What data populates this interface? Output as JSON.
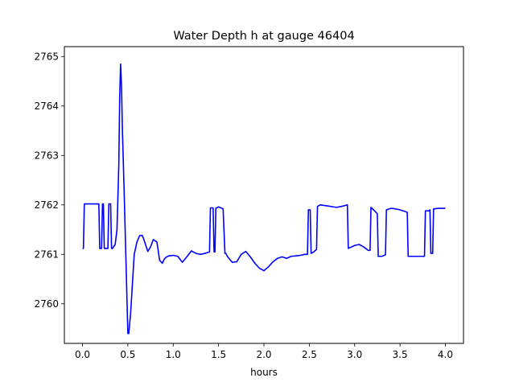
{
  "chart_data": {
    "type": "line",
    "title": "Water Depth h at gauge 46404",
    "xlabel": "hours",
    "ylabel": "",
    "xlim": [
      -0.2,
      4.2
    ],
    "ylim": [
      2759.2,
      2765.2
    ],
    "xticks": [
      0.0,
      0.5,
      1.0,
      1.5,
      2.0,
      2.5,
      3.0,
      3.5,
      4.0
    ],
    "xtick_labels": [
      "0.0",
      "0.5",
      "1.0",
      "1.5",
      "2.0",
      "2.5",
      "3.0",
      "3.5",
      "4.0"
    ],
    "yticks": [
      2760,
      2761,
      2762,
      2763,
      2764,
      2765
    ],
    "ytick_labels": [
      "2760",
      "2761",
      "2762",
      "2763",
      "2764",
      "2765"
    ],
    "grid": false,
    "series": [
      {
        "name": "",
        "color": "#0000ff",
        "x": [
          0.0,
          0.01,
          0.02,
          0.15,
          0.18,
          0.19,
          0.21,
          0.22,
          0.23,
          0.24,
          0.25,
          0.28,
          0.29,
          0.31,
          0.32,
          0.33,
          0.36,
          0.38,
          0.4,
          0.41,
          0.42,
          0.43,
          0.44,
          0.46,
          0.48,
          0.5,
          0.51,
          0.53,
          0.55,
          0.57,
          0.6,
          0.63,
          0.66,
          0.68,
          0.72,
          0.75,
          0.78,
          0.82,
          0.85,
          0.88,
          0.9,
          0.92,
          0.95,
          1.0,
          1.05,
          1.1,
          1.15,
          1.2,
          1.25,
          1.3,
          1.35,
          1.4,
          1.41,
          1.44,
          1.45,
          1.46,
          1.47,
          1.48,
          1.5,
          1.55,
          1.57,
          1.58,
          1.6,
          1.65,
          1.7,
          1.75,
          1.8,
          1.85,
          1.9,
          1.95,
          2.0,
          2.05,
          2.1,
          2.15,
          2.2,
          2.25,
          2.3,
          2.35,
          2.4,
          2.45,
          2.48,
          2.49,
          2.51,
          2.52,
          2.55,
          2.58,
          2.59,
          2.62,
          2.7,
          2.8,
          2.88,
          2.92,
          2.93,
          3.0,
          3.05,
          3.1,
          3.15,
          3.17,
          3.18,
          3.22,
          3.25,
          3.26,
          3.3,
          3.34,
          3.35,
          3.4,
          3.45,
          3.5,
          3.55,
          3.58,
          3.59,
          3.62,
          3.7,
          3.77,
          3.78,
          3.82,
          3.83,
          3.84,
          3.86,
          3.87,
          3.88,
          3.92,
          3.96,
          4.0
        ],
        "y": [
          2761.12,
          2761.12,
          2762.02,
          2762.02,
          2762.02,
          2761.12,
          2761.12,
          2762.02,
          2762.02,
          2761.12,
          2761.12,
          2761.12,
          2762.02,
          2762.02,
          2761.12,
          2761.12,
          2761.2,
          2761.5,
          2762.8,
          2764.2,
          2764.85,
          2764.4,
          2763.5,
          2762.2,
          2760.8,
          2759.4,
          2759.4,
          2759.8,
          2760.4,
          2761.0,
          2761.25,
          2761.38,
          2761.38,
          2761.28,
          2761.06,
          2761.15,
          2761.3,
          2761.25,
          2760.88,
          2760.82,
          2760.9,
          2760.94,
          2760.97,
          2760.98,
          2760.96,
          2760.84,
          2760.95,
          2761.07,
          2761.02,
          2761.0,
          2761.02,
          2761.05,
          2761.94,
          2761.94,
          2761.05,
          2761.05,
          2761.94,
          2761.94,
          2761.96,
          2761.92,
          2761.02,
          2761.02,
          2760.95,
          2760.84,
          2760.85,
          2761.0,
          2761.06,
          2760.95,
          2760.82,
          2760.72,
          2760.67,
          2760.75,
          2760.85,
          2760.92,
          2760.95,
          2760.92,
          2760.96,
          2760.97,
          2760.98,
          2761.0,
          2761.0,
          2761.9,
          2761.9,
          2761.02,
          2761.05,
          2761.1,
          2761.97,
          2762.0,
          2761.98,
          2761.95,
          2761.98,
          2762.0,
          2761.12,
          2761.18,
          2761.2,
          2761.15,
          2761.08,
          2761.08,
          2761.95,
          2761.88,
          2761.82,
          2760.96,
          2760.96,
          2760.99,
          2761.9,
          2761.93,
          2761.92,
          2761.9,
          2761.87,
          2761.85,
          2760.96,
          2760.96,
          2760.96,
          2760.96,
          2761.88,
          2761.88,
          2761.9,
          2761.02,
          2761.02,
          2761.92,
          2761.92,
          2761.93,
          2761.93,
          2761.93
        ]
      }
    ]
  }
}
